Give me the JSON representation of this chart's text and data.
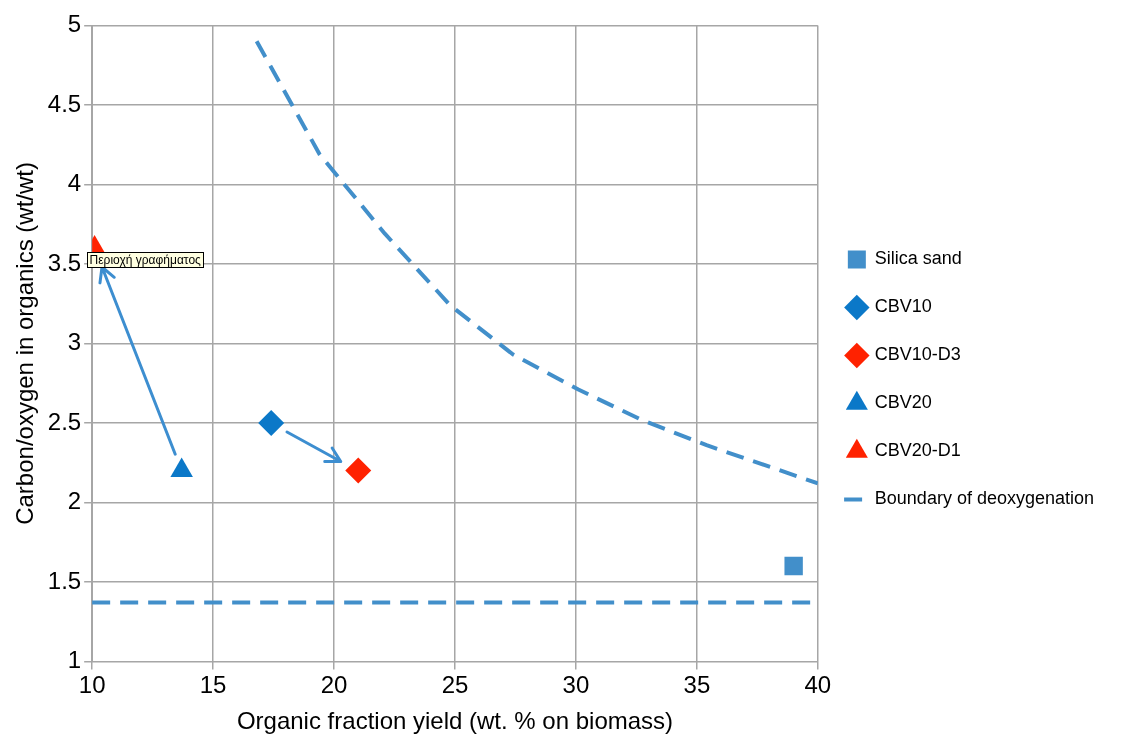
{
  "chart_data": {
    "type": "scatter",
    "xlabel": "Organic fraction yield (wt. % on biomass)",
    "ylabel": "Carbon/oxygen in organics (wt/wt)",
    "xlim": [
      10,
      40
    ],
    "xticks": [
      10,
      15,
      20,
      25,
      30,
      35,
      40
    ],
    "ylim": [
      1,
      5
    ],
    "yticks": [
      1,
      1.5,
      2,
      2.5,
      3,
      3.5,
      4,
      4.5,
      5
    ],
    "grid": true,
    "legend": "right",
    "annotations": [
      "Περιοχή γραφήματος"
    ],
    "ref_lines": [
      {
        "axis": "y",
        "value": 1.37,
        "color": "#428fca",
        "line_style": "dashed"
      }
    ],
    "series": [
      {
        "name": "Silica sand",
        "color": "#428fca",
        "marker": "square",
        "x": [
          39
        ],
        "values": [
          1.6
        ]
      },
      {
        "name": "CBV10",
        "color": "#0b78c8",
        "marker": "diamond",
        "x": [
          17.4
        ],
        "values": [
          2.5
        ]
      },
      {
        "name": "CBV10-D3",
        "color": "#ff2200",
        "marker": "diamond",
        "x": [
          21
        ],
        "values": [
          2.2
        ]
      },
      {
        "name": "CBV20",
        "color": "#0b78c8",
        "marker": "triangle",
        "x": [
          13.7
        ],
        "values": [
          2.2
        ]
      },
      {
        "name": "CBV20-D1",
        "color": "#ff2200",
        "marker": "triangle",
        "x": [
          10.1
        ],
        "values": [
          3.6
        ]
      },
      {
        "name": "Boundary of deoxygenation",
        "type": "line",
        "color": "#428fca",
        "marker": "none",
        "line_style": "dashed",
        "x": [
          16.8,
          19.4,
          22.1,
          24.8,
          27.4,
          30.1,
          32.7,
          35.4,
          40
        ],
        "values": [
          4.9,
          4.19,
          3.69,
          3.24,
          2.93,
          2.71,
          2.52,
          2.36,
          2.12
        ]
      }
    ]
  }
}
